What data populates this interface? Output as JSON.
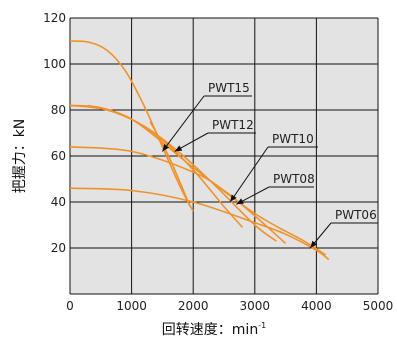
{
  "chart_data": {
    "type": "line",
    "xlabel": "回转速度：min",
    "xlabel_superscript": "-1",
    "ylabel": "把握力：kN",
    "xlim": [
      0,
      5000
    ],
    "ylim": [
      0,
      120
    ],
    "x_ticks": [
      0,
      1000,
      2000,
      3000,
      4000,
      5000
    ],
    "y_ticks": [
      20,
      40,
      60,
      80,
      100,
      120
    ],
    "x_tick_labels": [
      "0",
      "1000",
      "2000",
      "3000",
      "4000",
      "5000"
    ],
    "y_tick_labels": [
      "20",
      "40",
      "60",
      "80",
      "100",
      "120"
    ],
    "grid": true,
    "line_color": "#f0922a",
    "plot_background": "#e3e3e3",
    "series": [
      {
        "name": "PWT15",
        "x": [
          0,
          300,
          600,
          900,
          1200,
          1500,
          1800,
          2000
        ],
        "y": [
          110,
          109.5,
          106,
          97,
          82,
          64,
          46,
          36
        ]
      },
      {
        "name": "PWT12",
        "x": [
          0,
          500,
          1000,
          1500,
          2000,
          2500,
          2800
        ],
        "y": [
          82,
          81,
          76,
          67,
          54,
          38,
          29
        ]
      },
      {
        "name": "PWT10",
        "x": [
          0,
          600,
          1200,
          1800,
          2400,
          3000,
          3350
        ],
        "y": [
          82,
          80,
          73,
          61,
          46,
          30,
          23
        ]
      },
      {
        "name": "PWT08",
        "x": [
          0,
          1000,
          2000,
          2500,
          3000,
          3500
        ],
        "y": [
          64,
          62,
          53,
          45,
          34,
          22
        ]
      },
      {
        "name": "PWT06",
        "x": [
          0,
          1000,
          2000,
          3000,
          3500,
          4000,
          4200
        ],
        "y": [
          46,
          45,
          40,
          31,
          26,
          19,
          15
        ]
      }
    ],
    "extra_lines": [
      {
        "x": [
          300,
          1000,
          2000,
          3000,
          3800,
          4150
        ],
        "y": [
          82,
          76,
          55,
          35,
          23,
          17
        ]
      },
      {
        "x": [
          1300,
          1600,
          1950
        ],
        "y": [
          75,
          60,
          38
        ]
      }
    ],
    "annotations": [
      {
        "text": "PWT15",
        "series": "PWT15",
        "point": [
          1500,
          62
        ]
      },
      {
        "text": "PWT12",
        "series": "PWT12",
        "point": [
          1700,
          62
        ]
      },
      {
        "text": "PWT10",
        "series": "PWT10",
        "point": [
          2600,
          40
        ]
      },
      {
        "text": "PWT08",
        "series": "PWT08",
        "point": [
          2700,
          39
        ]
      },
      {
        "text": "PWT06",
        "series": "PWT06",
        "point": [
          3900,
          20
        ]
      }
    ]
  }
}
